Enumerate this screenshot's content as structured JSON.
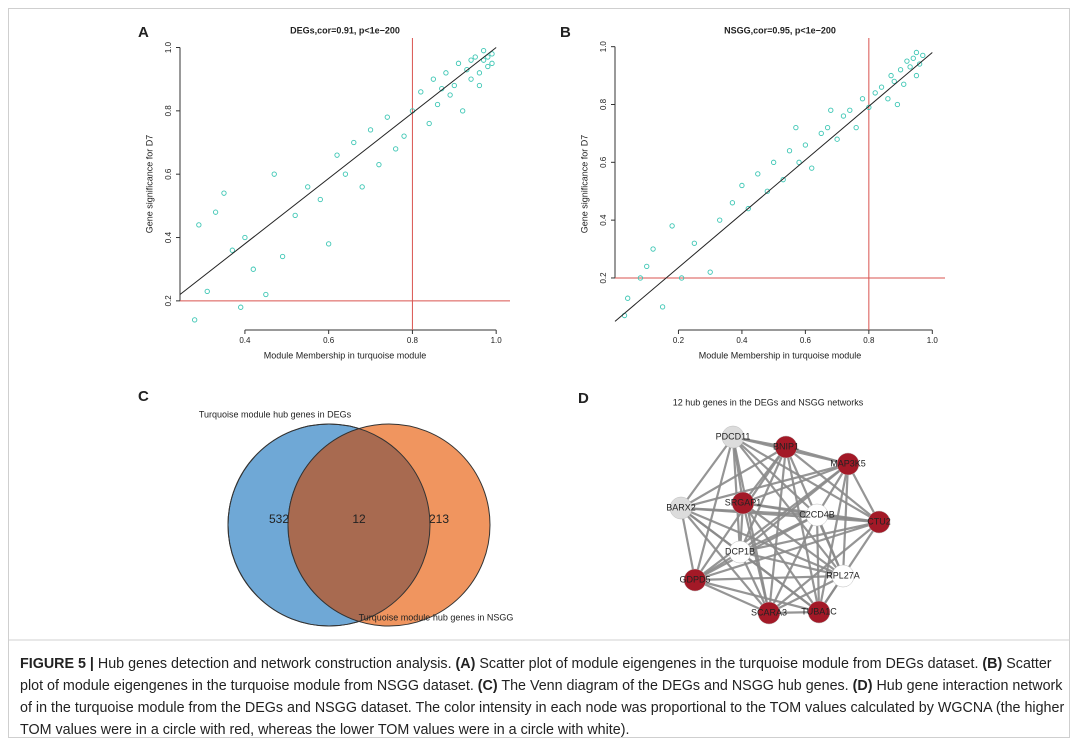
{
  "panels": [
    "A",
    "B",
    "C",
    "D"
  ],
  "chart_data": [
    {
      "type": "scatter",
      "title": "DEGs,cor=0.91, p<1e−200",
      "x_label": "Module Membership in turquoise module",
      "y_label": "Gene significance for D7",
      "color": "#3cc6b4",
      "x": [
        0.28,
        0.29,
        0.31,
        0.33,
        0.35,
        0.37,
        0.39,
        0.4,
        0.42,
        0.45,
        0.47,
        0.49,
        0.52,
        0.55,
        0.58,
        0.6,
        0.62,
        0.64,
        0.66,
        0.68,
        0.7,
        0.72,
        0.74,
        0.76,
        0.78,
        0.8,
        0.82,
        0.84,
        0.85,
        0.86,
        0.88,
        0.89,
        0.9,
        0.91,
        0.92,
        0.93,
        0.94,
        0.95,
        0.96,
        0.97,
        0.97,
        0.98,
        0.98,
        0.99,
        0.99,
        0.96,
        0.94,
        0.87
      ],
      "values": [
        0.14,
        0.44,
        0.23,
        0.48,
        0.54,
        0.36,
        0.18,
        0.4,
        0.3,
        0.22,
        0.6,
        0.34,
        0.47,
        0.56,
        0.52,
        0.38,
        0.66,
        0.6,
        0.7,
        0.56,
        0.74,
        0.63,
        0.78,
        0.68,
        0.72,
        0.8,
        0.86,
        0.76,
        0.9,
        0.82,
        0.92,
        0.85,
        0.88,
        0.95,
        0.8,
        0.93,
        0.9,
        0.97,
        0.92,
        0.96,
        0.99,
        0.94,
        0.97,
        0.95,
        0.98,
        0.88,
        0.96,
        0.87
      ],
      "xlim": [
        0.245,
        1.033
      ],
      "ylim": [
        0.108,
        1.03
      ],
      "xticks": [
        0.4,
        0.6,
        0.8,
        {
          "value": 1,
          "label": "1.0"
        }
      ],
      "yticks": [
        0.2,
        0.4,
        0.6,
        0.8,
        {
          "value": 1,
          "label": "1.0"
        }
      ],
      "reference_lines": {
        "x": 0.8,
        "y": 0.2,
        "color": "#d9534f"
      },
      "fit_line": {
        "x": [
          0.245,
          1.0
        ],
        "y": [
          0.22,
          1.0
        ],
        "color": "#222222"
      }
    },
    {
      "type": "scatter",
      "title": "NSGG,cor=0.95, p<1e−200",
      "x_label": "Module Membership in turquoise module",
      "y_label": "Gene significance for D7",
      "color": "#3cc6b4",
      "x": [
        0.03,
        0.04,
        0.08,
        0.1,
        0.12,
        0.15,
        0.18,
        0.21,
        0.25,
        0.3,
        0.33,
        0.37,
        0.4,
        0.42,
        0.45,
        0.48,
        0.5,
        0.53,
        0.55,
        0.58,
        0.6,
        0.62,
        0.65,
        0.67,
        0.7,
        0.72,
        0.74,
        0.76,
        0.78,
        0.8,
        0.82,
        0.84,
        0.86,
        0.87,
        0.88,
        0.9,
        0.91,
        0.92,
        0.93,
        0.94,
        0.95,
        0.96,
        0.97,
        0.95,
        0.89,
        0.68,
        0.57
      ],
      "values": [
        0.07,
        0.13,
        0.2,
        0.24,
        0.3,
        0.1,
        0.38,
        0.2,
        0.32,
        0.22,
        0.4,
        0.46,
        0.52,
        0.44,
        0.56,
        0.5,
        0.6,
        0.54,
        0.64,
        0.6,
        0.66,
        0.58,
        0.7,
        0.72,
        0.68,
        0.76,
        0.78,
        0.72,
        0.82,
        0.79,
        0.84,
        0.86,
        0.82,
        0.9,
        0.88,
        0.92,
        0.87,
        0.95,
        0.93,
        0.96,
        0.98,
        0.94,
        0.97,
        0.9,
        0.8,
        0.78,
        0.72
      ],
      "xlim": [
        0,
        1.04
      ],
      "ylim": [
        0.02,
        1.03
      ],
      "xticks": [
        0.2,
        0.4,
        0.6,
        0.8,
        {
          "value": 1,
          "label": "1.0"
        }
      ],
      "yticks": [
        0.2,
        0.4,
        0.6,
        0.8,
        {
          "value": 1,
          "label": "1.0"
        }
      ],
      "reference_lines": {
        "x": 0.8,
        "y": 0.2,
        "color": "#d9534f"
      },
      "fit_line": {
        "x": [
          0.0,
          1.0
        ],
        "y": [
          0.05,
          0.98
        ],
        "color": "#222222"
      }
    },
    {
      "type": "venn",
      "sets": [
        {
          "name": "Turquoise module hub genes in DEGs",
          "color": "#6fa8d6",
          "value": 532
        },
        {
          "name": "Turquoise module hub genes in NSGG",
          "color": "#f0955f",
          "value": 213
        }
      ],
      "overlap": {
        "value": 12,
        "color": "#a86a50"
      }
    }
  ],
  "network": {
    "title": "12 hub genes in the DEGs and NSGG networks",
    "edge_color": "#8a8a8a",
    "nodes": [
      {
        "label": "PDCD11",
        "color": "#dcdcdc"
      },
      {
        "label": "BNIP1",
        "color": "#a31927"
      },
      {
        "label": "MAP3K5",
        "color": "#a31927"
      },
      {
        "label": "BARX2",
        "color": "#dcdcdc"
      },
      {
        "label": "SRGAP1",
        "color": "#a31927"
      },
      {
        "label": "C2CD4B",
        "color": "#ffffff"
      },
      {
        "label": "CTU2",
        "color": "#a31927"
      },
      {
        "label": "DCP1B",
        "color": "#ffffff"
      },
      {
        "label": "RPL27A",
        "color": "#ffffff"
      },
      {
        "label": "GDPD5",
        "color": "#a31927"
      },
      {
        "label": "SCARA3",
        "color": "#a31927"
      },
      {
        "label": "TUBA1C",
        "color": "#a31927"
      }
    ]
  },
  "caption": [
    {
      "text": "FIGURE 5 |",
      "bold": true
    },
    {
      "text": " Hub genes detection and network construction analysis. ",
      "bold": false
    },
    {
      "text": "(A)",
      "bold": true
    },
    {
      "text": " Scatter plot of module eigengenes in the turquoise module from DEGs dataset. ",
      "bold": false
    },
    {
      "text": "(B)",
      "bold": true
    },
    {
      "text": " Scatter plot of module eigengenes in the turquoise module from NSGG dataset. ",
      "bold": false
    },
    {
      "text": "(C)",
      "bold": true
    },
    {
      "text": " The Venn diagram of the DEGs and NSGG hub genes. ",
      "bold": false
    },
    {
      "text": "(D)",
      "bold": true
    },
    {
      "text": " Hub gene interaction network of in the turquoise module from the DEGs and NSGG dataset. The color intensity in each node was proportional to the TOM values calculated by WGCNA (the higher TOM values were in a circle with red, whereas the lower TOM values were in a circle with white).",
      "bold": false
    }
  ]
}
